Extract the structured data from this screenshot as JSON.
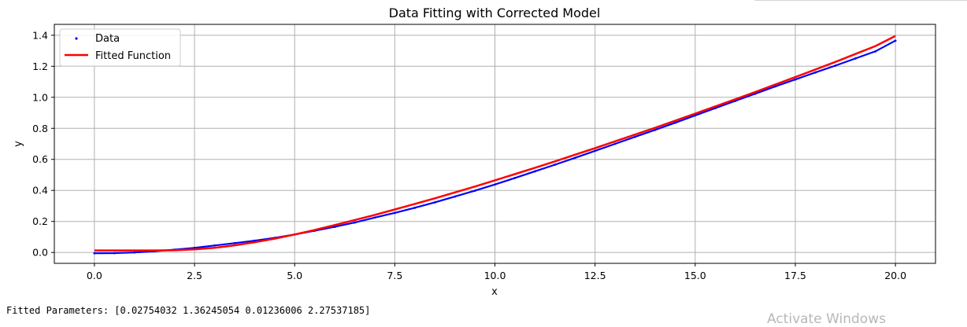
{
  "chart_data": {
    "type": "line",
    "title": "Data Fitting with Corrected Model",
    "xlabel": "x",
    "ylabel": "y",
    "xlim": [
      -1,
      21
    ],
    "ylim": [
      -0.07,
      1.47
    ],
    "grid": true,
    "legend_position": "top-left",
    "x_ticks": [
      0.0,
      2.5,
      5.0,
      7.5,
      10.0,
      12.5,
      15.0,
      17.5,
      20.0
    ],
    "x_tick_labels": [
      "0.0",
      "2.5",
      "5.0",
      "7.5",
      "10.0",
      "12.5",
      "15.0",
      "17.5",
      "20.0"
    ],
    "y_ticks": [
      0.0,
      0.2,
      0.4,
      0.6,
      0.8,
      1.0,
      1.2,
      1.4
    ],
    "y_tick_labels": [
      "0.0",
      "0.2",
      "0.4",
      "0.6",
      "0.8",
      "1.0",
      "1.2",
      "1.4"
    ],
    "series": [
      {
        "name": "Data",
        "kind": "scatter",
        "color": "#0000ff",
        "x": [
          0,
          0.5,
          1,
          1.5,
          2,
          2.5,
          3,
          3.5,
          4,
          4.5,
          5,
          5.5,
          6,
          6.5,
          7,
          7.5,
          8,
          8.5,
          9,
          9.5,
          10,
          10.5,
          11,
          11.5,
          12,
          12.5,
          13,
          13.5,
          14,
          14.5,
          15,
          15.5,
          16,
          16.5,
          17,
          17.5,
          18,
          18.5,
          19,
          19.5,
          20
        ],
        "y": [
          -0.005,
          -0.004,
          0.0,
          0.008,
          0.018,
          0.03,
          0.045,
          0.06,
          0.076,
          0.094,
          0.116,
          0.14,
          0.165,
          0.193,
          0.225,
          0.255,
          0.288,
          0.323,
          0.36,
          0.398,
          0.438,
          0.48,
          0.523,
          0.566,
          0.61,
          0.655,
          0.7,
          0.745,
          0.79,
          0.836,
          0.883,
          0.93,
          0.977,
          1.023,
          1.07,
          1.115,
          1.16,
          1.204,
          1.25,
          1.296,
          1.365
        ]
      },
      {
        "name": "Fitted Function",
        "kind": "line",
        "color": "#ff0000",
        "x": [
          0,
          0.5,
          1,
          1.5,
          2,
          2.5,
          3,
          3.5,
          4,
          4.5,
          5,
          5.5,
          6,
          6.5,
          7,
          7.5,
          8,
          8.5,
          9,
          9.5,
          10,
          10.5,
          11,
          11.5,
          12,
          12.5,
          13,
          13.5,
          14,
          14.5,
          15,
          15.5,
          16,
          16.5,
          17,
          17.5,
          18,
          18.5,
          19,
          19.5,
          20
        ],
        "y": [
          0.013,
          0.013,
          0.013,
          0.013,
          0.014,
          0.02,
          0.03,
          0.046,
          0.066,
          0.089,
          0.116,
          0.145,
          0.176,
          0.209,
          0.242,
          0.277,
          0.313,
          0.349,
          0.387,
          0.425,
          0.465,
          0.505,
          0.546,
          0.587,
          0.63,
          0.672,
          0.716,
          0.76,
          0.804,
          0.849,
          0.895,
          0.941,
          0.987,
          1.034,
          1.082,
          1.13,
          1.179,
          1.228,
          1.279,
          1.33,
          1.395
        ]
      }
    ]
  },
  "output": {
    "fitted_parameters": "Fitted Parameters: [0.02754032 1.36245054 0.01236006 2.27537185]"
  },
  "watermark": {
    "text": "Activate Windows"
  }
}
